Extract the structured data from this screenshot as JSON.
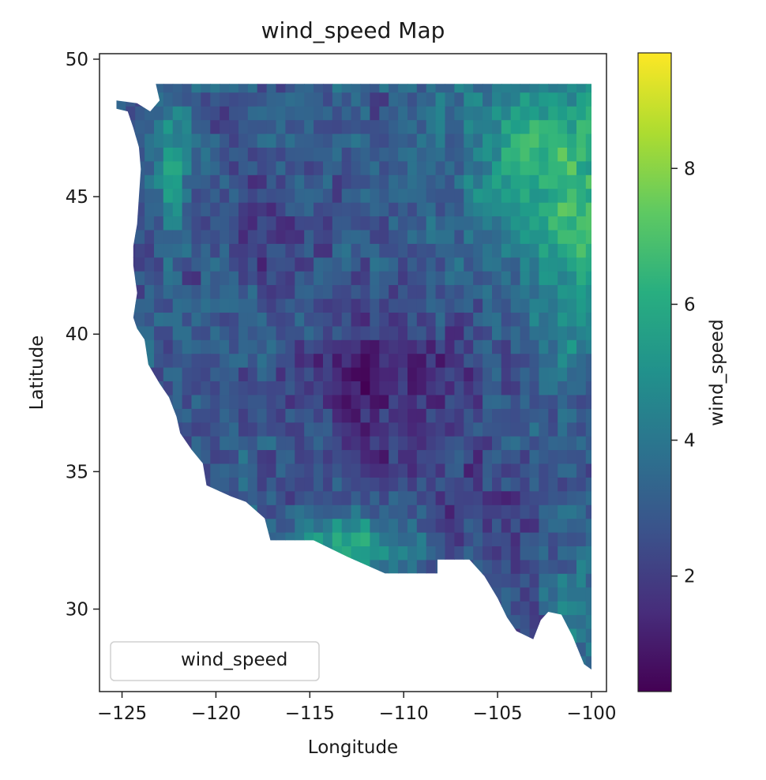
{
  "chart_data": {
    "type": "heatmap",
    "title": "wind_speed Map",
    "xlabel": "Longitude",
    "ylabel": "Latitude",
    "xlim": [
      -126.2,
      -99.2
    ],
    "ylim": [
      27.0,
      50.2
    ],
    "x_ticks": [
      -125,
      -120,
      -115,
      -110,
      -105,
      -100
    ],
    "x_tick_labels": [
      "−125",
      "−120",
      "−115",
      "−110",
      "−105",
      "−100"
    ],
    "y_ticks": [
      30,
      35,
      40,
      45,
      50
    ],
    "y_tick_labels": [
      "30",
      "35",
      "40",
      "45",
      "50"
    ],
    "grid": false,
    "legend": {
      "position": "lower-left",
      "entries": [
        "wind_speed"
      ]
    },
    "colorbar": {
      "label": "wind_speed",
      "colormap": "viridis",
      "range": [
        0.3,
        9.7
      ],
      "ticks": [
        2,
        4,
        6,
        8
      ],
      "tick_labels": [
        "2",
        "4",
        "6",
        "8"
      ]
    },
    "data_region": {
      "lon_range": [
        -125.3,
        -100.0
      ],
      "lat_range": [
        27.8,
        49.1
      ],
      "cell_deg": 0.5
    },
    "approx_pattern": {
      "low_wind_regions": [
        "interior basin near -111,38",
        "northwest interior near -117,44"
      ],
      "high_wind_regions": [
        "northeast near -102,47",
        "east near -100,42",
        "south coast near -113,32",
        "pacific coast near -122,46"
      ]
    }
  }
}
